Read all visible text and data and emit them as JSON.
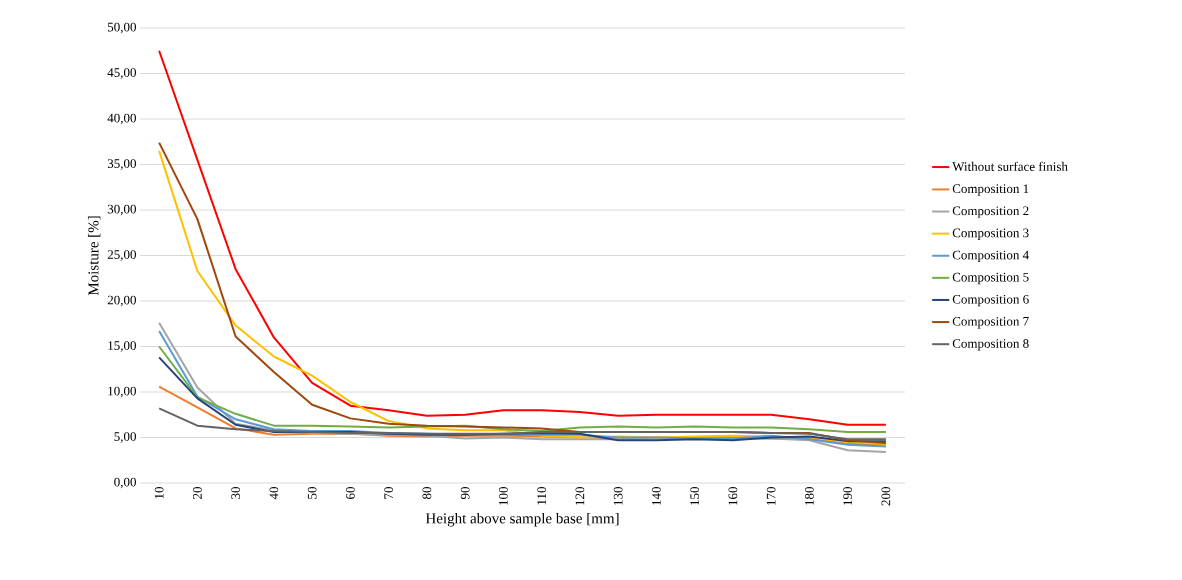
{
  "chart_data": {
    "type": "line",
    "xlabel": "Height above sample base [mm]",
    "ylabel": "Moisture [%]",
    "categories": [
      "10",
      "20",
      "30",
      "40",
      "50",
      "60",
      "70",
      "80",
      "90",
      "100",
      "110",
      "120",
      "130",
      "140",
      "150",
      "160",
      "170",
      "180",
      "190",
      "200"
    ],
    "ylim": [
      0,
      50
    ],
    "yticks": [
      {
        "value": 0,
        "label": "0,00"
      },
      {
        "value": 5,
        "label": "5,00"
      },
      {
        "value": 10,
        "label": "10,00"
      },
      {
        "value": 15,
        "label": "15,00"
      },
      {
        "value": 20,
        "label": "20,00"
      },
      {
        "value": 25,
        "label": "25,00"
      },
      {
        "value": 30,
        "label": "30,00"
      },
      {
        "value": 35,
        "label": "35,00"
      },
      {
        "value": 40,
        "label": "40,00"
      },
      {
        "value": 45,
        "label": "45,00"
      },
      {
        "value": 50,
        "label": "50,00"
      }
    ],
    "grid": "y",
    "legend": "right",
    "marker": "none",
    "line_style": "solid",
    "series": [
      {
        "name": "Without surface finish",
        "color": "#ff0000",
        "values": [
          47.5,
          35.5,
          23.5,
          16,
          11,
          8.5,
          8,
          7.4,
          7.5,
          8,
          8,
          7.8,
          7.4,
          7.5,
          7.5,
          7.5,
          7.5,
          7,
          6.4,
          6.4
        ]
      },
      {
        "name": "Composition 1",
        "color": "#ed7d31",
        "values": [
          10.6,
          8.3,
          6,
          5.3,
          5.4,
          5.4,
          5.2,
          5.1,
          5.2,
          5.2,
          5.1,
          5.0,
          5.0,
          5.0,
          5.0,
          5.0,
          4.9,
          4.9,
          4.3,
          4.2
        ]
      },
      {
        "name": "Composition 2",
        "color": "#a5a5a5",
        "values": [
          17.6,
          10.5,
          6.5,
          5.8,
          5.5,
          5.4,
          5.3,
          5.2,
          4.9,
          5.0,
          4.8,
          4.8,
          4.8,
          4.9,
          4.9,
          4.9,
          4.9,
          4.7,
          3.6,
          3.4
        ]
      },
      {
        "name": "Composition 3",
        "color": "#ffc000",
        "values": [
          36.5,
          23.3,
          17.3,
          13.9,
          11.8,
          8.9,
          6.8,
          6.0,
          5.8,
          5.8,
          5.2,
          5.0,
          5.1,
          5.0,
          5.1,
          5.2,
          5.1,
          5.0,
          4.5,
          4.3
        ]
      },
      {
        "name": "Composition 4",
        "color": "#5b9bd5",
        "values": [
          16.7,
          9.5,
          7.0,
          5.9,
          5.7,
          5.7,
          5.5,
          5.4,
          5.3,
          5.3,
          5.3,
          5.3,
          5.0,
          5.0,
          4.9,
          4.9,
          5.2,
          4.8,
          4.2,
          4.0
        ]
      },
      {
        "name": "Composition 5",
        "color": "#70ad47",
        "values": [
          15.0,
          9.4,
          7.6,
          6.3,
          6.3,
          6.2,
          6.1,
          6.2,
          6.3,
          5.9,
          5.7,
          6.1,
          6.2,
          6.1,
          6.2,
          6.1,
          6.1,
          5.9,
          5.6,
          5.6
        ]
      },
      {
        "name": "Composition 6",
        "color": "#264478",
        "values": [
          13.8,
          9.3,
          6.4,
          5.6,
          5.6,
          5.6,
          5.4,
          5.3,
          5.3,
          5.4,
          5.5,
          5.4,
          4.7,
          4.7,
          4.8,
          4.7,
          5.0,
          5.1,
          4.6,
          4.6
        ]
      },
      {
        "name": "Composition 7",
        "color": "#9e480e",
        "values": [
          37.4,
          29.0,
          16.1,
          12.2,
          8.6,
          7.1,
          6.5,
          6.3,
          6.2,
          6.1,
          6.0,
          5.6,
          5.6,
          5.6,
          5.6,
          5.6,
          5.5,
          5.5,
          4.7,
          4.4
        ]
      },
      {
        "name": "Composition 8",
        "color": "#636363",
        "values": [
          8.2,
          6.3,
          5.9,
          5.7,
          5.6,
          5.5,
          5.5,
          5.4,
          5.4,
          5.4,
          5.6,
          5.6,
          5.6,
          5.6,
          5.6,
          5.6,
          5.5,
          5.4,
          4.8,
          4.8
        ]
      }
    ]
  }
}
